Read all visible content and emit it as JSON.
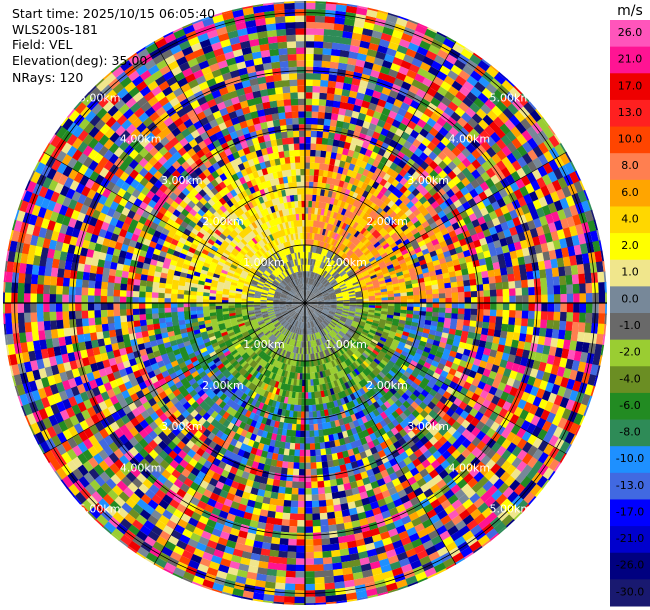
{
  "header": {
    "start_time": "Start time: 2025/10/15 06:05:40",
    "instrument": "WLS200s-181",
    "field": "Field: VEL",
    "elevation": "Elevation(deg): 35.00",
    "nrays": "NRays: 120"
  },
  "chart_data": {
    "type": "heatmap",
    "projection": "polar-ppi",
    "field": "VEL",
    "elevation_deg": 35.0,
    "n_rays": 120,
    "range_rings_km": [
      1.0,
      2.0,
      3.0,
      4.0,
      5.0
    ],
    "max_range_km": 5.2,
    "ring_labels": [
      "1.00km",
      "2.00km",
      "3.00km",
      "4.00km",
      "5.00km"
    ],
    "colorbar": {
      "unit": "m/s",
      "ticks": [
        "26.0",
        "21.0",
        "17.0",
        "13.0",
        "10.0",
        "8.0",
        "6.0",
        "4.0",
        "2.0",
        "1.0",
        "0.0",
        "-1.0",
        "-2.0",
        "-4.0",
        "-6.0",
        "-8.0",
        "-10.0",
        "-13.0",
        "-17.0",
        "-21.0",
        "-26.0",
        "-30.0"
      ],
      "colors": [
        "#ff55bb",
        "#ff1493",
        "#ee0000",
        "#ff2020",
        "#ff4500",
        "#ff7f50",
        "#ffa500",
        "#ffd700",
        "#ffff00",
        "#f0e68c",
        "#778899",
        "#696969",
        "#9acd32",
        "#6b8e23",
        "#228b22",
        "#2e8b57",
        "#1e90ff",
        "#4169e1",
        "#0000ff",
        "#0000cd",
        "#000080",
        "#191970"
      ]
    },
    "pattern": {
      "inner_gray_km": 0.5,
      "north_half": "positive velocities (yellow to orange), noisy beyond ~3 km",
      "south_half": "negative velocities (green to blue), noisy beyond ~3 km"
    }
  }
}
